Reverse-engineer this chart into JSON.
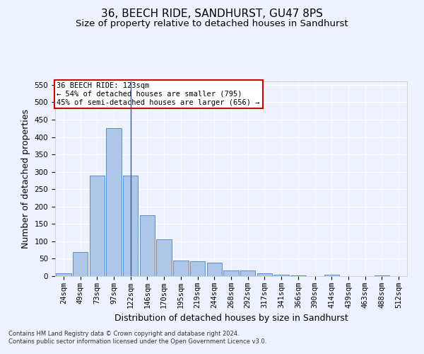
{
  "title": "36, BEECH RIDE, SANDHURST, GU47 8PS",
  "subtitle": "Size of property relative to detached houses in Sandhurst",
  "xlabel": "Distribution of detached houses by size in Sandhurst",
  "ylabel": "Number of detached properties",
  "bar_labels": [
    "24sqm",
    "49sqm",
    "73sqm",
    "97sqm",
    "122sqm",
    "146sqm",
    "170sqm",
    "195sqm",
    "219sqm",
    "244sqm",
    "268sqm",
    "292sqm",
    "317sqm",
    "341sqm",
    "366sqm",
    "390sqm",
    "414sqm",
    "439sqm",
    "463sqm",
    "488sqm",
    "512sqm"
  ],
  "bar_values": [
    8,
    70,
    290,
    425,
    290,
    175,
    105,
    45,
    42,
    38,
    16,
    16,
    8,
    5,
    2,
    0,
    4,
    0,
    0,
    3,
    0
  ],
  "bar_color": "#aec6e8",
  "bar_edge_color": "#5a90c8",
  "vline_x_index": 4,
  "vline_color": "#3a5a8a",
  "ylim": [
    0,
    560
  ],
  "yticks": [
    0,
    50,
    100,
    150,
    200,
    250,
    300,
    350,
    400,
    450,
    500,
    550
  ],
  "annotation_text": "36 BEECH RIDE: 123sqm\n← 54% of detached houses are smaller (795)\n45% of semi-detached houses are larger (656) →",
  "annotation_box_color": "#ffffff",
  "annotation_box_edgecolor": "#cc0000",
  "footer_text": "Contains HM Land Registry data © Crown copyright and database right 2024.\nContains public sector information licensed under the Open Government Licence v3.0.",
  "background_color": "#eef2ff",
  "grid_color": "#ffffff",
  "title_fontsize": 11,
  "subtitle_fontsize": 9.5,
  "tick_fontsize": 7.5,
  "ylabel_fontsize": 9,
  "xlabel_fontsize": 9
}
